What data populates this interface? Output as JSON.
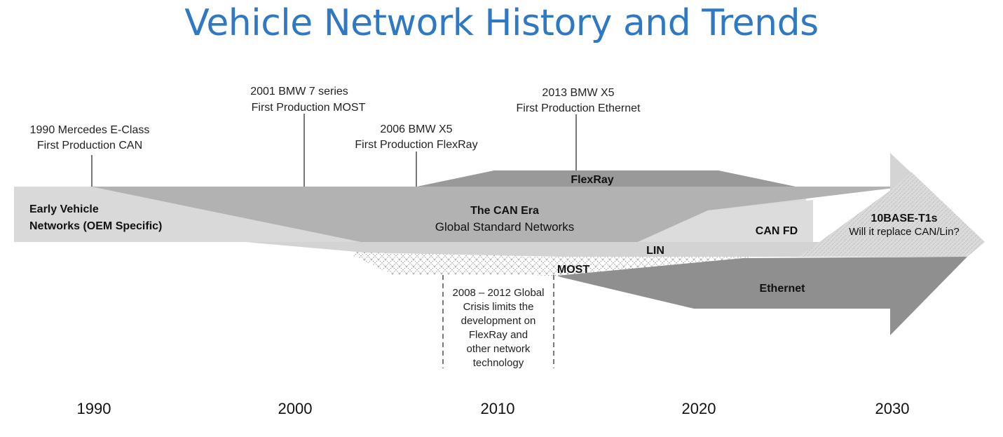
{
  "title": "Vehicle Network History and Trends",
  "milestones": [
    {
      "line1": "1990 Mercedes E-Class",
      "line2": "First Production CAN"
    },
    {
      "line1": "2001 BMW 7 series",
      "line2": "First Production MOST"
    },
    {
      "line1": "2006 BMW X5",
      "line2": "First Production FlexRay"
    },
    {
      "line1": "2013 BMW X5",
      "line2": "First Production Ethernet"
    }
  ],
  "bands": {
    "early_line1": "Early Vehicle",
    "early_line2": "Networks (OEM Specific)",
    "can_era": "The CAN Era",
    "global": "Global Standard Networks",
    "flexray": "FlexRay",
    "can_fd": "CAN FD",
    "t1s": "10BASE-T1s",
    "t1s_question": "Will it replace CAN/Lin?",
    "lin": "LIN",
    "most": "MOST",
    "ethernet": "Ethernet"
  },
  "crisis_lines": [
    "2008 – 2012 Global",
    "Crisis limits the",
    "development on",
    "FlexRay and",
    "other network",
    "technology"
  ],
  "years": [
    "1990",
    "2000",
    "2010",
    "2020",
    "2030"
  ],
  "colors": {
    "title": "#2f78c4",
    "light_band": "#d9d9d9",
    "mid_band": "#b2b2b2",
    "dark_band": "#8f8f8f",
    "flexray_band": "#9a9a9a"
  }
}
